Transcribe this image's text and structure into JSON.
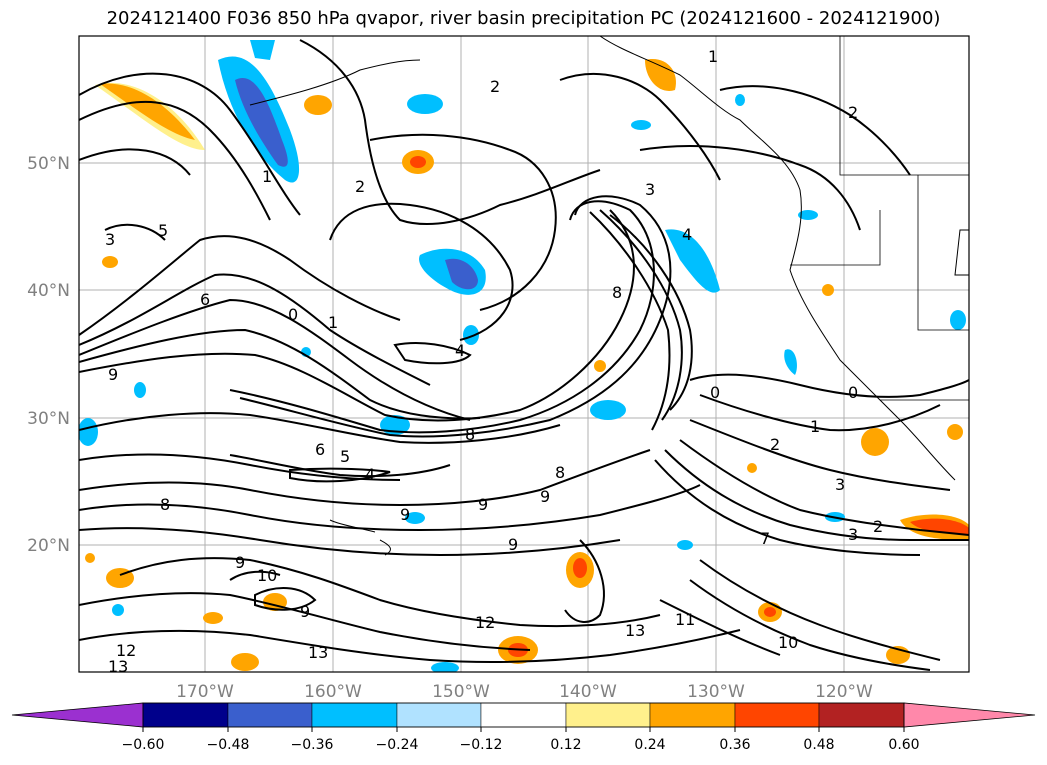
{
  "title": "2024121400 F036 850 hPa qvapor, river basin precipitation PC (2024121600 - 2024121900)",
  "lat_ticks": [
    "20°N",
    "30°N",
    "40°N",
    "50°N"
  ],
  "lon_ticks": [
    "170°W",
    "160°W",
    "150°W",
    "140°W",
    "130°W",
    "120°W"
  ],
  "contour_labels": [
    "1",
    "2",
    "2",
    "3",
    "3",
    "4",
    "5",
    "6",
    "0",
    "1",
    "4",
    "8",
    "9",
    "0",
    "1",
    "2",
    "3",
    "0",
    "2",
    "3",
    "7",
    "6",
    "5",
    "4",
    "8",
    "9",
    "8",
    "9",
    "9",
    "9",
    "8",
    "10",
    "9",
    "9",
    "12",
    "13",
    "12",
    "13",
    "11",
    "10",
    "13",
    "1",
    "2"
  ],
  "colorbar": {
    "ticks": [
      "−0.60",
      "−0.48",
      "−0.36",
      "−0.24",
      "−0.12",
      "0.12",
      "0.24",
      "0.36",
      "0.48",
      "0.60"
    ],
    "colors": [
      "#9b30d0",
      "#00008b",
      "#3a5fcd",
      "#00bfff",
      "#b0e2ff",
      "#ffffff",
      "#fff08c",
      "#ffa500",
      "#ff4500",
      "#b22222",
      "#ff88aa"
    ]
  }
}
